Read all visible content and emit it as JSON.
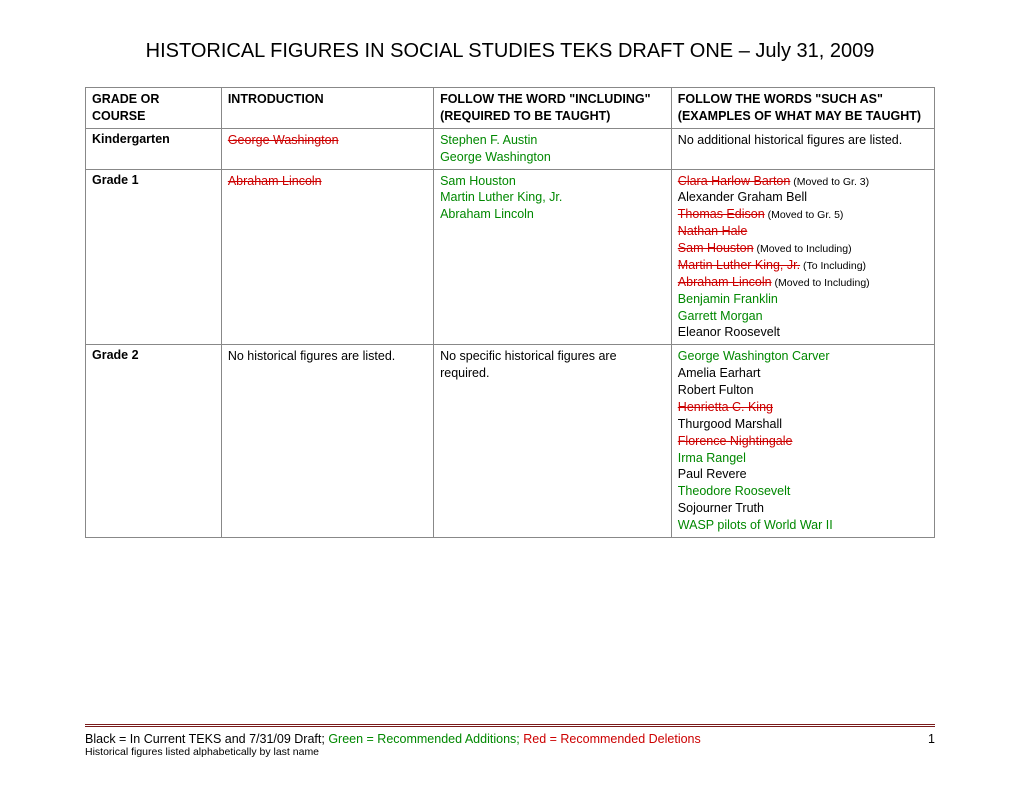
{
  "title": "HISTORICAL FIGURES IN SOCIAL STUDIES TEKS DRAFT ONE – July 31, 2009",
  "columns": {
    "grade": "GRADE OR COURSE",
    "intro": "INTRODUCTION",
    "including": "FOLLOW THE WORD \"INCLUDING\" (REQUIRED TO BE TAUGHT)",
    "suchas": "FOLLOW THE WORDS \"SUCH AS\" (EXAMPLES OF WHAT MAY BE TAUGHT)"
  },
  "rows": [
    {
      "grade": "Kindergarten",
      "intro": [
        {
          "text": "George Washington",
          "style": "red-strike"
        }
      ],
      "including": [
        {
          "text": "Stephen F. Austin",
          "style": "green"
        },
        {
          "text": "George Washington",
          "style": "green"
        }
      ],
      "suchas": [
        {
          "text": "No additional historical figures are listed.",
          "style": "black"
        }
      ]
    },
    {
      "grade": "Grade 1",
      "intro": [
        {
          "text": "Abraham Lincoln",
          "style": "red-strike"
        }
      ],
      "including": [
        {
          "text": "Sam Houston",
          "style": "green"
        },
        {
          "text": "Martin Luther King, Jr.",
          "style": "green"
        },
        {
          "text": "Abraham Lincoln",
          "style": "green"
        }
      ],
      "suchas": [
        {
          "text": "Clara Harlow Barton",
          "style": "red-strike",
          "note": " (Moved to Gr. 3)",
          "note_style": "red"
        },
        {
          "text": "Alexander Graham Bell",
          "style": "black"
        },
        {
          "text": "Thomas Edison",
          "style": "red-strike",
          "note": " (Moved to Gr. 5)",
          "note_style": "red"
        },
        {
          "text": "Nathan Hale",
          "style": "red-strike"
        },
        {
          "text": "Sam Houston",
          "style": "red-strike",
          "note": " (Moved to Including)",
          "note_style": "red"
        },
        {
          "text": "Martin Luther King, Jr.",
          "style": "red-strike",
          "note": " (To Including)",
          "note_style": "red"
        },
        {
          "text": "Abraham Lincoln",
          "style": "red-strike",
          "note": " (Moved to Including)",
          "note_style": "red"
        },
        {
          "text": "Benjamin Franklin",
          "style": "green"
        },
        {
          "text": "Garrett Morgan",
          "style": "green"
        },
        {
          "text": "Eleanor Roosevelt",
          "style": "black"
        }
      ]
    },
    {
      "grade": "Grade 2",
      "intro": [
        {
          "text": "No historical figures are listed.",
          "style": "black"
        }
      ],
      "including": [
        {
          "text": "No specific historical figures are required.",
          "style": "black"
        }
      ],
      "suchas": [
        {
          "text": "George Washington Carver",
          "style": "green"
        },
        {
          "text": "Amelia Earhart",
          "style": "black"
        },
        {
          "text": "Robert Fulton",
          "style": "black"
        },
        {
          "text": "Henrietta C. King",
          "style": "red-strike"
        },
        {
          "text": "Thurgood Marshall",
          "style": "black"
        },
        {
          "text": "Florence Nightingale",
          "style": "red-strike"
        },
        {
          "text": "Irma Rangel",
          "style": "green"
        },
        {
          "text": "Paul Revere",
          "style": "black"
        },
        {
          "text": "Theodore Roosevelt",
          "style": "green"
        },
        {
          "text": "Sojourner Truth",
          "style": "black"
        },
        {
          "text": "WASP pilots of World War II",
          "style": "green"
        }
      ]
    }
  ],
  "footer": {
    "legend_black": "Black = In Current TEKS and 7/31/09 Draft; ",
    "legend_green": "Green = Recommended Additions; ",
    "legend_red": "Red = Recommended Deletions",
    "page": "1",
    "note": "Historical figures listed alphabetically by last name"
  }
}
